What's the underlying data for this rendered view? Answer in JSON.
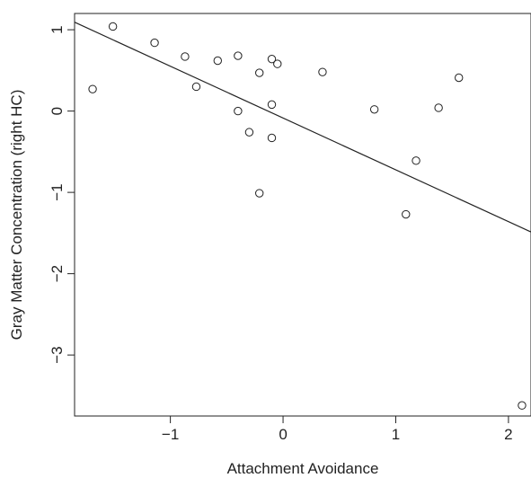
{
  "chart_data": {
    "type": "scatter",
    "title": "",
    "xlabel": "Attachment Avoidance",
    "ylabel": "Gray Matter Concentration (right HC)",
    "xlim": [
      -1.85,
      2.2
    ],
    "ylim": [
      -3.75,
      1.2
    ],
    "xticks": [
      -1,
      0,
      1,
      2
    ],
    "yticks": [
      -3,
      -2,
      -1,
      0,
      1
    ],
    "xtick_labels": [
      "−1",
      "0",
      "1",
      "2"
    ],
    "ytick_labels": [
      "−3",
      "−2",
      "−1",
      "0",
      "1"
    ],
    "grid": false,
    "legend": "none",
    "marker": "open-circle",
    "colors": {
      "marker": "#222222",
      "line": "#222222",
      "axis": "#222222"
    },
    "points": [
      {
        "x": -1.69,
        "y": 0.27
      },
      {
        "x": -1.51,
        "y": 1.04
      },
      {
        "x": -1.14,
        "y": 0.84
      },
      {
        "x": -0.87,
        "y": 0.67
      },
      {
        "x": -0.77,
        "y": 0.3
      },
      {
        "x": -0.58,
        "y": 0.62
      },
      {
        "x": -0.4,
        "y": 0.68
      },
      {
        "x": -0.4,
        "y": 0.0
      },
      {
        "x": -0.3,
        "y": -0.26
      },
      {
        "x": -0.21,
        "y": 0.47
      },
      {
        "x": -0.21,
        "y": -1.01
      },
      {
        "x": -0.1,
        "y": 0.64
      },
      {
        "x": -0.1,
        "y": 0.08
      },
      {
        "x": -0.1,
        "y": -0.33
      },
      {
        "x": -0.05,
        "y": 0.58
      },
      {
        "x": 0.35,
        "y": 0.48
      },
      {
        "x": 0.81,
        "y": 0.02
      },
      {
        "x": 1.09,
        "y": -1.27
      },
      {
        "x": 1.18,
        "y": -0.61
      },
      {
        "x": 1.38,
        "y": 0.04
      },
      {
        "x": 1.56,
        "y": 0.41
      },
      {
        "x": 2.12,
        "y": -3.62
      }
    ],
    "regression_line": {
      "slope": -0.637,
      "intercept": -0.0855
    }
  }
}
